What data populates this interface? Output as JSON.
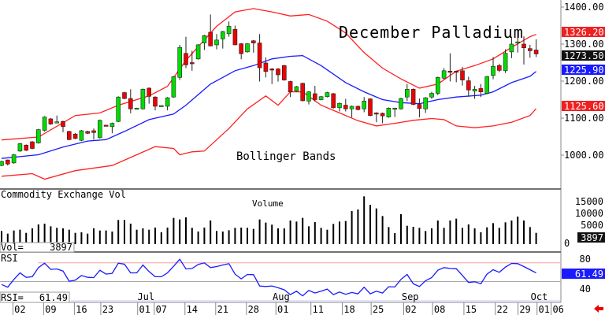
{
  "chart_data": {
    "type": "candlestick",
    "title": "December Palladium",
    "annotation": "Bollinger Bands",
    "price_axis": {
      "ticks": [
        "1400.00",
        "1300.00",
        "1200.00",
        "1100.00",
        "1000.00"
      ],
      "tick_values": [
        1400,
        1300,
        1200,
        1100,
        1000
      ]
    },
    "last_values": {
      "upper_band": "1326.20",
      "close": "1273.50",
      "middle_band": "1225.90",
      "lower_band": "1125.60"
    },
    "colors": {
      "up": "#00dd00",
      "down": "#ee0000",
      "upper_band": "#ff2020",
      "lower_band": "#ff2020",
      "middle_band": "#1a1aff",
      "rsi": "#1a1aff"
    },
    "candles_ohlc": [
      [
        972,
        985,
        970,
        983
      ],
      [
        987,
        988,
        972,
        976
      ],
      [
        979,
        1003,
        977,
        1001
      ],
      [
        1011,
        1033,
        1009,
        1031
      ],
      [
        1027,
        1029,
        1011,
        1013
      ],
      [
        1036,
        1038,
        1016,
        1018
      ],
      [
        1033,
        1071,
        1031,
        1069
      ],
      [
        1067,
        1105,
        1064,
        1103
      ],
      [
        1098,
        1100,
        1082,
        1084
      ],
      [
        1089,
        1107,
        1086,
        1090
      ],
      [
        1091,
        1093,
        1062,
        1077
      ],
      [
        1064,
        1066,
        1040,
        1042
      ],
      [
        1057,
        1060,
        1043,
        1045
      ],
      [
        1040,
        1068,
        1038,
        1066
      ],
      [
        1064,
        1066,
        1057,
        1059
      ],
      [
        1066,
        1072,
        1042,
        1061
      ],
      [
        1047,
        1096,
        1045,
        1094
      ],
      [
        1081,
        1082,
        1079,
        1080
      ],
      [
        1077,
        1088,
        1059,
        1086
      ],
      [
        1091,
        1159,
        1089,
        1157
      ],
      [
        1169,
        1171,
        1151,
        1153
      ],
      [
        1153,
        1178,
        1113,
        1125
      ],
      [
        1127,
        1128,
        1126,
        1127
      ],
      [
        1125,
        1180,
        1123,
        1178
      ],
      [
        1181,
        1183,
        1139,
        1159
      ],
      [
        1157,
        1159,
        1121,
        1132
      ],
      [
        1133,
        1135,
        1132,
        1134
      ],
      [
        1132,
        1157,
        1121,
        1155
      ],
      [
        1157,
        1214,
        1155,
        1212
      ],
      [
        1210,
        1298,
        1203,
        1291
      ],
      [
        1275,
        1320,
        1235,
        1244
      ],
      [
        1250,
        1282,
        1228,
        1247
      ],
      [
        1260,
        1300,
        1258,
        1298
      ],
      [
        1303,
        1325,
        1284,
        1323
      ],
      [
        1332,
        1380,
        1294,
        1295
      ],
      [
        1298,
        1327,
        1286,
        1311
      ],
      [
        1314,
        1336,
        1288,
        1334
      ],
      [
        1328,
        1361,
        1320,
        1348
      ],
      [
        1340,
        1350,
        1297,
        1298
      ],
      [
        1301,
        1303,
        1259,
        1274
      ],
      [
        1279,
        1303,
        1277,
        1301
      ],
      [
        1309,
        1311,
        1277,
        1303
      ],
      [
        1303,
        1327,
        1199,
        1236
      ],
      [
        1249,
        1264,
        1210,
        1226
      ],
      [
        1233,
        1235,
        1192,
        1231
      ],
      [
        1233,
        1235,
        1199,
        1217
      ],
      [
        1242,
        1244,
        1201,
        1203
      ],
      [
        1199,
        1201,
        1157,
        1171
      ],
      [
        1173,
        1187,
        1171,
        1185
      ],
      [
        1194,
        1196,
        1145,
        1147
      ],
      [
        1146,
        1173,
        1137,
        1171
      ],
      [
        1166,
        1187,
        1145,
        1150
      ],
      [
        1150,
        1160,
        1148,
        1158
      ],
      [
        1158,
        1171,
        1156,
        1169
      ],
      [
        1166,
        1168,
        1126,
        1128
      ],
      [
        1128,
        1142,
        1118,
        1140
      ],
      [
        1135,
        1152,
        1118,
        1125
      ],
      [
        1125,
        1134,
        1102,
        1132
      ],
      [
        1132,
        1134,
        1121,
        1123
      ],
      [
        1125,
        1157,
        1116,
        1146
      ],
      [
        1152,
        1154,
        1105,
        1107
      ],
      [
        1114,
        1116,
        1089,
        1113
      ],
      [
        1113,
        1115,
        1086,
        1106
      ],
      [
        1103,
        1129,
        1101,
        1127
      ],
      [
        1126,
        1128,
        1103,
        1127
      ],
      [
        1125,
        1155,
        1123,
        1153
      ],
      [
        1157,
        1192,
        1146,
        1178
      ],
      [
        1178,
        1180,
        1135,
        1137
      ],
      [
        1137,
        1153,
        1102,
        1126
      ],
      [
        1125,
        1157,
        1114,
        1155
      ],
      [
        1157,
        1171,
        1152,
        1167
      ],
      [
        1167,
        1212,
        1162,
        1210
      ],
      [
        1208,
        1235,
        1205,
        1228
      ],
      [
        1227,
        1275,
        1199,
        1226
      ],
      [
        1227,
        1228,
        1197,
        1226
      ],
      [
        1228,
        1238,
        1188,
        1203
      ],
      [
        1201,
        1212,
        1158,
        1176
      ],
      [
        1173,
        1187,
        1152,
        1178
      ],
      [
        1180,
        1192,
        1157,
        1171
      ],
      [
        1167,
        1214,
        1165,
        1212
      ],
      [
        1215,
        1265,
        1205,
        1240
      ],
      [
        1242,
        1247,
        1224,
        1229
      ],
      [
        1228,
        1286,
        1222,
        1275
      ],
      [
        1279,
        1320,
        1262,
        1300
      ],
      [
        1305,
        1335,
        1277,
        1306
      ],
      [
        1300,
        1321,
        1245,
        1290
      ],
      [
        1288,
        1298,
        1263,
        1282
      ],
      [
        1284,
        1313,
        1265,
        1273.5
      ]
    ],
    "upper_band": [
      [
        0,
        1041
      ],
      [
        6,
        1049
      ],
      [
        12,
        1107
      ],
      [
        16,
        1114
      ],
      [
        19,
        1135
      ],
      [
        24,
        1160
      ],
      [
        27,
        1186
      ],
      [
        30,
        1256
      ],
      [
        35,
        1348
      ],
      [
        38,
        1387
      ],
      [
        41,
        1396
      ],
      [
        44,
        1387
      ],
      [
        47,
        1376
      ],
      [
        50,
        1380
      ],
      [
        53,
        1362
      ],
      [
        56,
        1330
      ],
      [
        59,
        1277
      ],
      [
        62,
        1235
      ],
      [
        65,
        1206
      ],
      [
        68,
        1181
      ],
      [
        71,
        1192
      ],
      [
        74,
        1227
      ],
      [
        77,
        1242
      ],
      [
        80,
        1260
      ],
      [
        83,
        1291
      ],
      [
        86,
        1320
      ],
      [
        87,
        1326.2
      ]
    ],
    "middle_band": [
      [
        0,
        991
      ],
      [
        6,
        1001
      ],
      [
        10,
        1022
      ],
      [
        14,
        1038
      ],
      [
        17,
        1042
      ],
      [
        20,
        1064
      ],
      [
        24,
        1096
      ],
      [
        28,
        1111
      ],
      [
        30,
        1135
      ],
      [
        34,
        1192
      ],
      [
        38,
        1228
      ],
      [
        41,
        1242
      ],
      [
        44,
        1260
      ],
      [
        47,
        1267
      ],
      [
        49,
        1269
      ],
      [
        52,
        1242
      ],
      [
        56,
        1196
      ],
      [
        59,
        1171
      ],
      [
        62,
        1150
      ],
      [
        65,
        1142
      ],
      [
        68,
        1139
      ],
      [
        71,
        1150
      ],
      [
        74,
        1157
      ],
      [
        78,
        1162
      ],
      [
        80,
        1171
      ],
      [
        83,
        1196
      ],
      [
        86,
        1213
      ],
      [
        87,
        1225.9
      ]
    ],
    "lower_band": [
      [
        0,
        943
      ],
      [
        5,
        950
      ],
      [
        7,
        935
      ],
      [
        12,
        958
      ],
      [
        18,
        972
      ],
      [
        22,
        1001
      ],
      [
        25,
        1023
      ],
      [
        28,
        1018
      ],
      [
        29,
        1001
      ],
      [
        31,
        1009
      ],
      [
        33,
        1011
      ],
      [
        37,
        1072
      ],
      [
        40,
        1125
      ],
      [
        43,
        1160
      ],
      [
        45,
        1135
      ],
      [
        47,
        1171
      ],
      [
        49,
        1171
      ],
      [
        52,
        1135
      ],
      [
        55,
        1114
      ],
      [
        58,
        1093
      ],
      [
        61,
        1079
      ],
      [
        64,
        1086
      ],
      [
        67,
        1094
      ],
      [
        70,
        1099
      ],
      [
        72,
        1096
      ],
      [
        74,
        1079
      ],
      [
        77,
        1074
      ],
      [
        80,
        1079
      ],
      [
        83,
        1089
      ],
      [
        86,
        1107
      ],
      [
        87,
        1125.6
      ]
    ],
    "volume": {
      "title": "Commodity Exchange Vol",
      "label": "Volume",
      "legend_label": "Vol=",
      "last": "3897",
      "ticks": [
        "15000",
        "10000",
        "5000",
        "0"
      ],
      "tick_values": [
        15000,
        10000,
        5000,
        0
      ],
      "values": [
        4540,
        3630,
        4720,
        4990,
        3900,
        5450,
        6810,
        7080,
        6170,
        5630,
        5450,
        4990,
        3900,
        4090,
        3630,
        5450,
        4720,
        4720,
        4360,
        8350,
        8350,
        7080,
        4990,
        5450,
        4990,
        5720,
        4090,
        5720,
        9080,
        8540,
        9260,
        5630,
        4360,
        5720,
        8170,
        4540,
        4360,
        4810,
        5630,
        5720,
        5630,
        5270,
        8540,
        7450,
        6720,
        5450,
        5450,
        8170,
        7810,
        9080,
        6170,
        7630,
        5630,
        4990,
        6990,
        7810,
        7990,
        11440,
        11990,
        16530,
        13620,
        12350,
        9720,
        5900,
        3810,
        10350,
        6360,
        5990,
        5630,
        4540,
        5450,
        8170,
        5630,
        8170,
        8810,
        5630,
        6810,
        5450,
        4090,
        5810,
        7260,
        5630,
        7540,
        8170,
        9530,
        8170,
        5900,
        3897
      ]
    },
    "rsi": {
      "title": "RSI",
      "legend_label": "RSI=",
      "last": "61.49",
      "ticks": [
        "80",
        "40"
      ],
      "tick_values": [
        80,
        40
      ],
      "reference_lines": [
        75,
        50
      ],
      "values": [
        46,
        42.4,
        52.8,
        61.6,
        55.6,
        56.4,
        68.6,
        74.5,
        66.2,
        66.8,
        64,
        50.4,
        51.8,
        58.1,
        55.6,
        55.3,
        65.1,
        59.9,
        60.9,
        74.5,
        73.2,
        61.6,
        61.6,
        72.1,
        63.4,
        56.4,
        56.4,
        61.6,
        70.4,
        79.8,
        66.8,
        67.5,
        72.8,
        74.9,
        68.6,
        70,
        72.1,
        73.9,
        59.9,
        53.6,
        59.5,
        59.2,
        44.1,
        43.4,
        44.1,
        41.7,
        38.9,
        32.5,
        37.1,
        30.8,
        38.1,
        34.6,
        37.1,
        39.9,
        32.5,
        36,
        32.9,
        35.4,
        33.6,
        42.4,
        33.6,
        37.1,
        34.6,
        43.1,
        42.7,
        52.8,
        59.5,
        46.9,
        43.4,
        51.1,
        55.3,
        65.1,
        68.6,
        67.5,
        67.2,
        58.1,
        48.7,
        49.7,
        46.9,
        59.9,
        65.8,
        62.3,
        69.3,
        74.2,
        73.9,
        70,
        65.8,
        61.49
      ]
    },
    "x_axis": {
      "months": [
        {
          "label": "Jul",
          "bar": 23.5
        },
        {
          "label": "Aug",
          "bar": 45.5
        },
        {
          "label": "Sep",
          "bar": 66.5
        },
        {
          "label": "Oct",
          "bar": 87.5
        }
      ],
      "days": [
        {
          "label": "02",
          "bar": 3
        },
        {
          "label": "09",
          "bar": 8
        },
        {
          "label": "16",
          "bar": 13
        },
        {
          "label": "23",
          "bar": 17.3
        },
        {
          "label": "01",
          "bar": 23.3
        },
        {
          "label": "07",
          "bar": 26
        },
        {
          "label": "14",
          "bar": 31
        },
        {
          "label": "21",
          "bar": 36
        },
        {
          "label": "28",
          "bar": 41
        },
        {
          "label": "01",
          "bar": 45.8
        },
        {
          "label": "11",
          "bar": 51.5
        },
        {
          "label": "18",
          "bar": 56.6
        },
        {
          "label": "25",
          "bar": 61.3
        },
        {
          "label": "02",
          "bar": 66.6
        },
        {
          "label": "08",
          "bar": 71.3
        },
        {
          "label": "15",
          "bar": 76.4
        },
        {
          "label": "22",
          "bar": 81.5
        },
        {
          "label": "29",
          "bar": 85.2
        },
        {
          "label": "01",
          "bar": 88.3
        },
        {
          "label": "06",
          "bar": 90.6
        }
      ]
    }
  }
}
